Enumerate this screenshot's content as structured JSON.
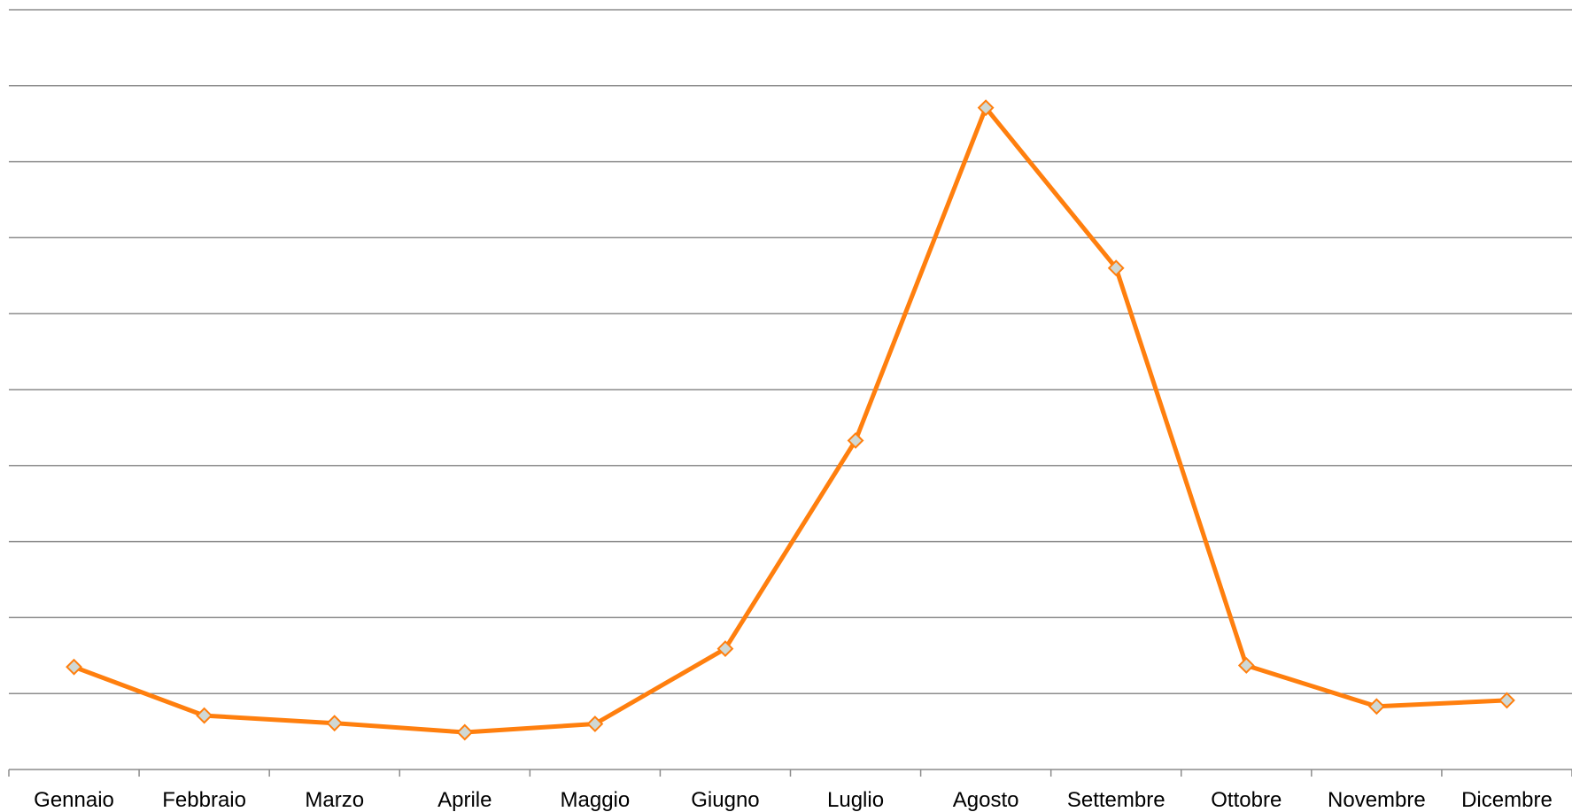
{
  "chart_data": {
    "type": "line",
    "categories": [
      "Gennaio",
      "Febbraio",
      "Marzo",
      "Aprile",
      "Maggio",
      "Giugno",
      "Luglio",
      "Agosto",
      "Settembre",
      "Ottobre",
      "Novembre",
      "Dicembre"
    ],
    "series": [
      {
        "values": [
          1.35,
          0.71,
          0.61,
          0.49,
          0.6,
          1.59,
          4.33,
          8.71,
          6.6,
          1.37,
          0.83,
          0.91
        ],
        "color": "#ff7f0e",
        "marker": "diamond",
        "marker_fill": "#d0d8d4"
      }
    ],
    "ylim": [
      0,
      10
    ],
    "y_gridlines": 10,
    "grid": true,
    "legend": "none",
    "title": "",
    "xlabel": "",
    "ylabel": ""
  }
}
